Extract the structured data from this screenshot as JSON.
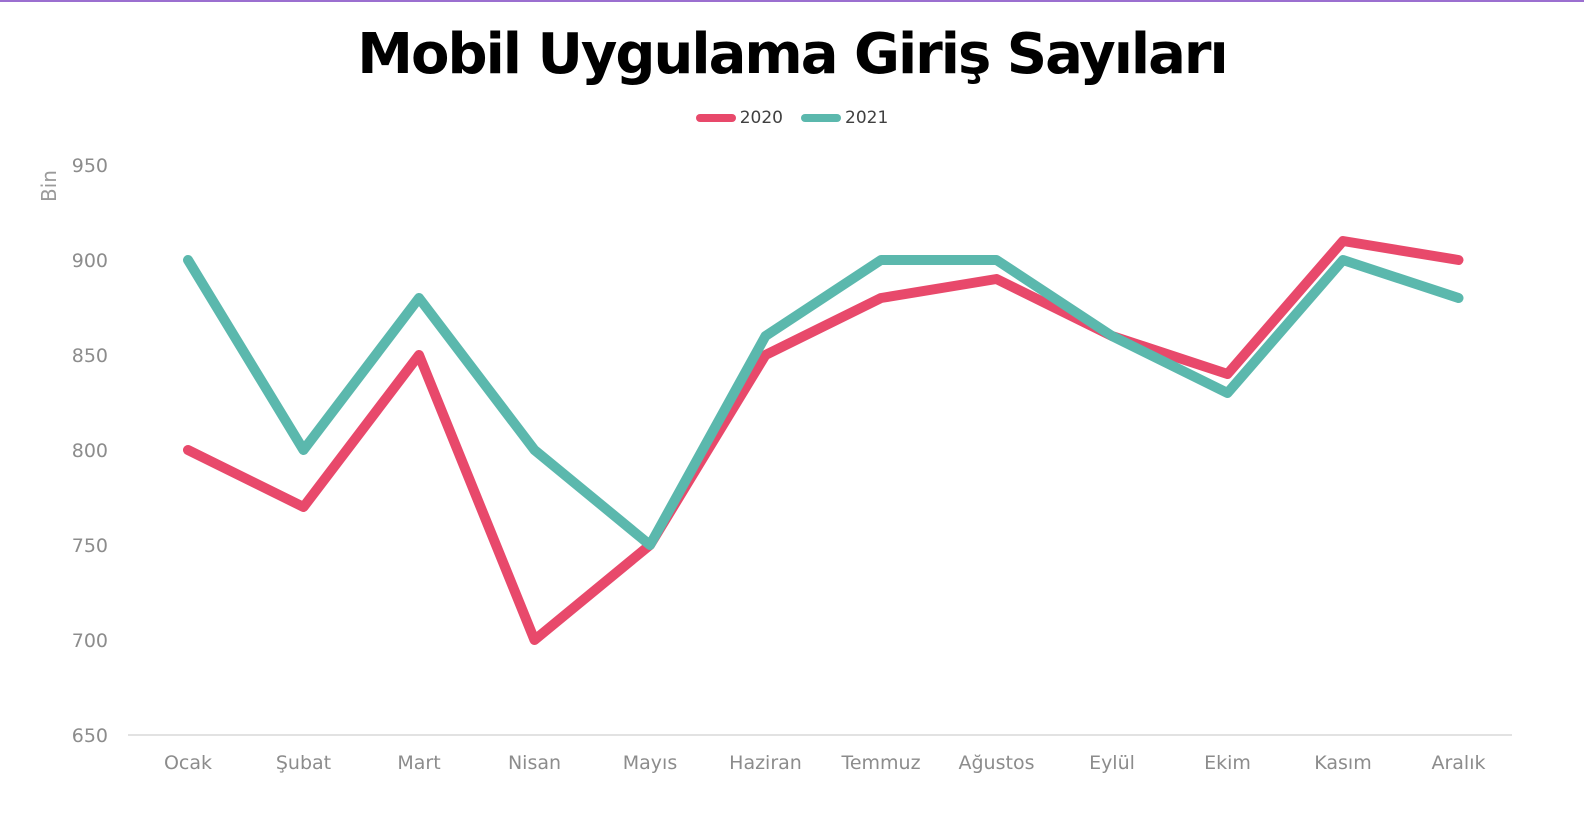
{
  "chart_data": {
    "type": "line",
    "title": "Mobil Uygulama Giriş Sayıları",
    "ylabel": "Bin",
    "xlabel": "",
    "ylim": [
      650,
      950
    ],
    "yticks": [
      650,
      700,
      750,
      800,
      850,
      900,
      950
    ],
    "categories": [
      "Ocak",
      "Şubat",
      "Mart",
      "Nisan",
      "Mayıs",
      "Haziran",
      "Temmuz",
      "Ağustos",
      "Eylül",
      "Ekim",
      "Kasım",
      "Aralık"
    ],
    "series": [
      {
        "name": "2020",
        "color": "#e8496b",
        "values": [
          800,
          770,
          850,
          700,
          750,
          850,
          880,
          890,
          860,
          840,
          910,
          900
        ]
      },
      {
        "name": "2021",
        "color": "#5bb8ad",
        "values": [
          900,
          800,
          880,
          800,
          750,
          860,
          900,
          900,
          860,
          830,
          900,
          880
        ]
      }
    ],
    "legend_position": "top-center",
    "grid": false
  }
}
